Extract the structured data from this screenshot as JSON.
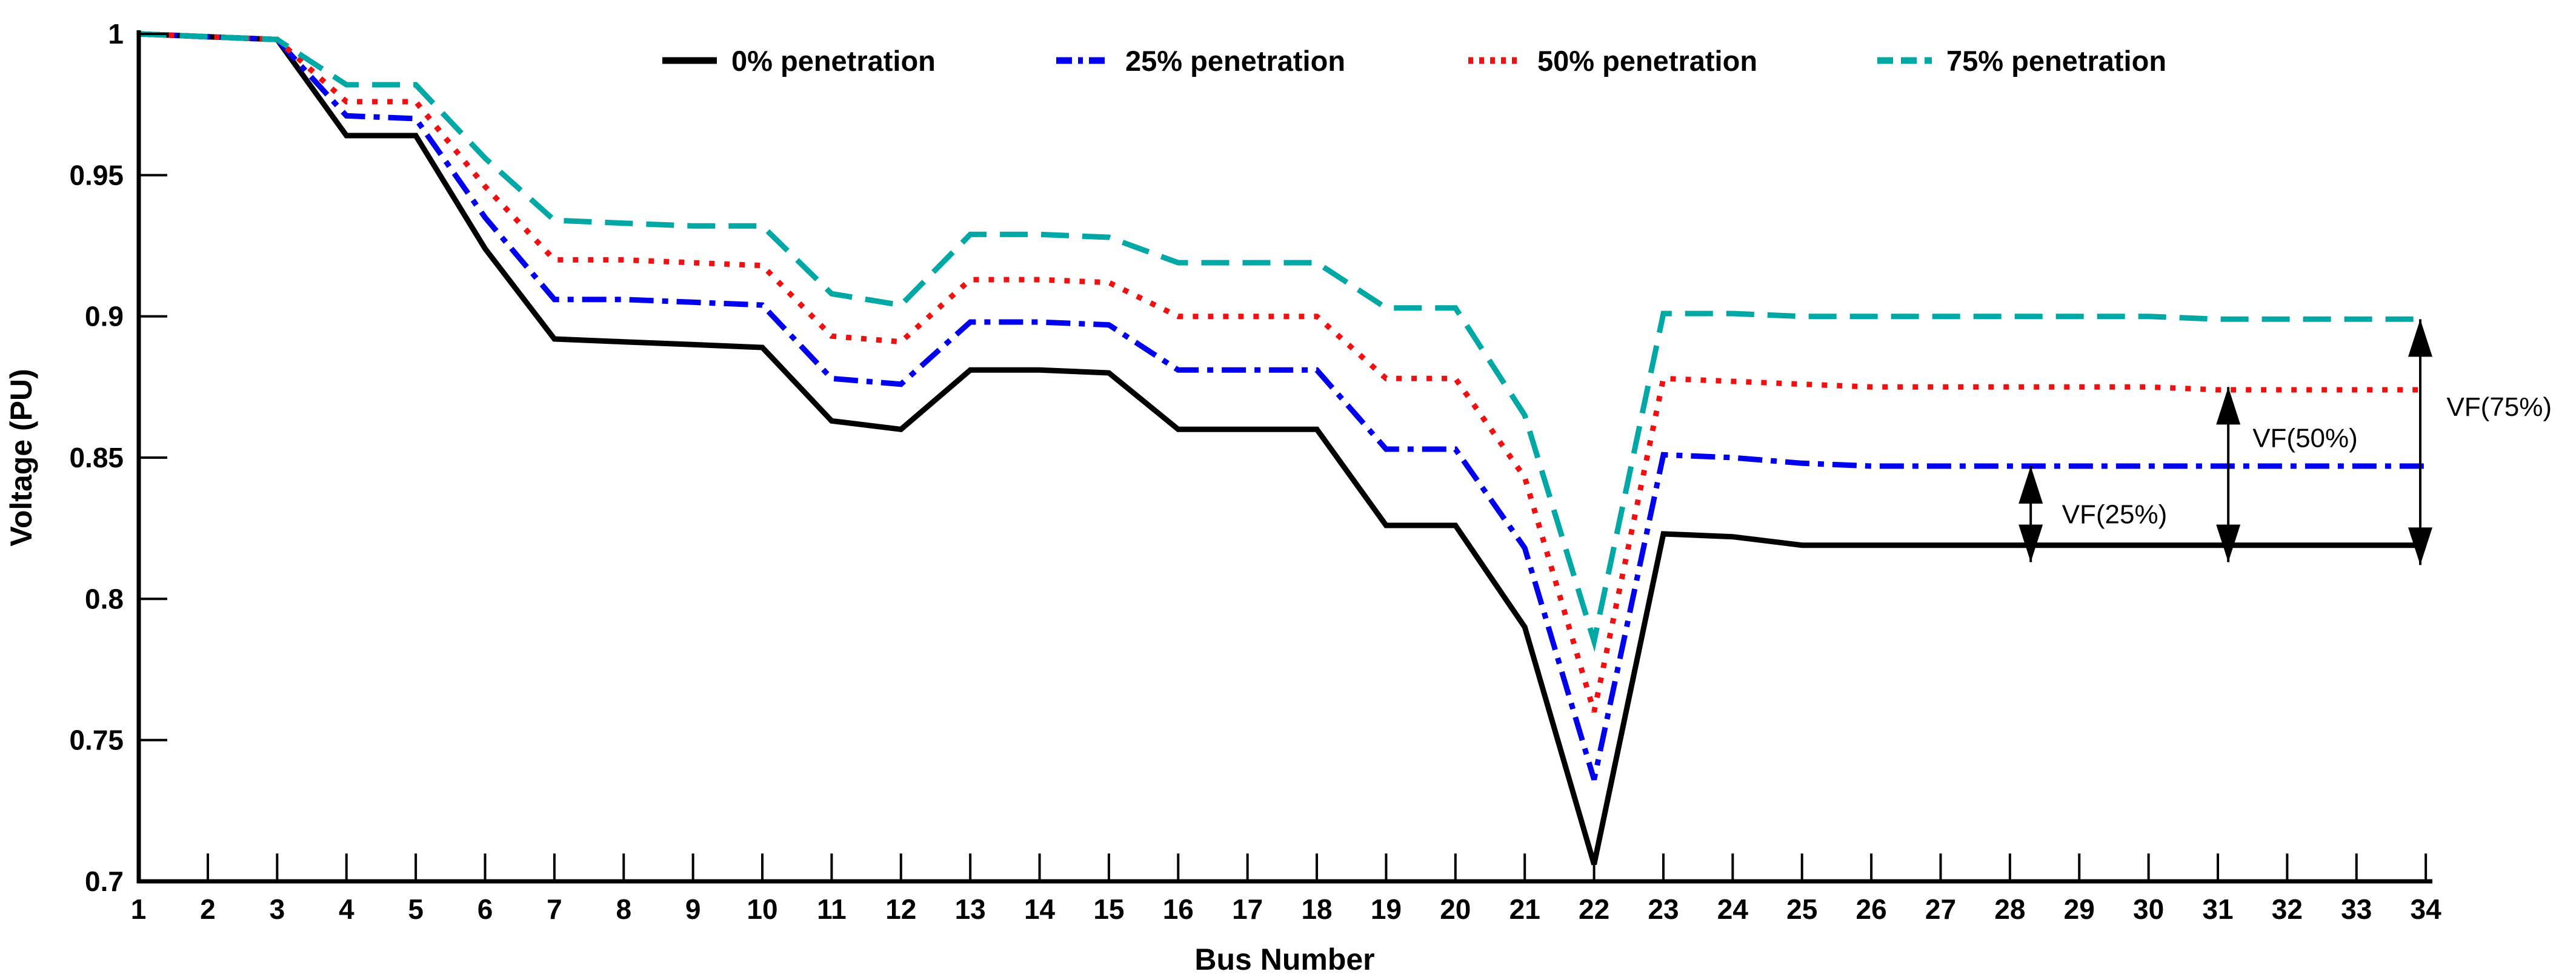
{
  "chart_data": {
    "type": "line",
    "title": "",
    "xlabel": "Bus Number",
    "ylabel": "Voltage (PU)",
    "x": [
      1,
      2,
      3,
      4,
      5,
      6,
      7,
      8,
      9,
      10,
      11,
      12,
      13,
      14,
      15,
      16,
      17,
      18,
      19,
      20,
      21,
      22,
      23,
      24,
      25,
      26,
      27,
      28,
      29,
      30,
      31,
      32,
      33,
      34
    ],
    "xlim": [
      1,
      34
    ],
    "ylim": [
      0.7,
      1.0
    ],
    "yticks": [
      1,
      0.95,
      0.9,
      0.85,
      0.8,
      0.75,
      0.7
    ],
    "ytick_labels": [
      "1",
      "0.95",
      "0.9",
      "0.85",
      "0.8",
      "0.75",
      "0.7"
    ],
    "xtick_labels": [
      "1",
      "2",
      "3",
      "4",
      "5",
      "6",
      "7",
      "8",
      "9",
      "10",
      "11",
      "12",
      "13",
      "14",
      "15",
      "16",
      "17",
      "18",
      "19",
      "20",
      "21",
      "22",
      "23",
      "24",
      "25",
      "26",
      "27",
      "28",
      "29",
      "30",
      "31",
      "32",
      "33",
      "34"
    ],
    "grid": false,
    "legend_position": "top-inside-horizontal",
    "series": [
      {
        "name": "0% penetration",
        "color": "#000000",
        "style": "solid",
        "values": [
          1.0,
          0.999,
          0.998,
          0.964,
          0.964,
          0.924,
          0.892,
          0.891,
          0.89,
          0.889,
          0.863,
          0.86,
          0.881,
          0.881,
          0.88,
          0.86,
          0.86,
          0.86,
          0.826,
          0.826,
          0.79,
          0.706,
          0.823,
          0.822,
          0.819,
          0.819,
          0.819,
          0.819,
          0.819,
          0.819,
          0.819,
          0.819,
          0.819,
          0.819
        ]
      },
      {
        "name": "25% penetration",
        "color": "#0000EE",
        "style": "dash-dot",
        "values": [
          1.0,
          0.999,
          0.998,
          0.971,
          0.97,
          0.935,
          0.906,
          0.906,
          0.905,
          0.904,
          0.878,
          0.876,
          0.898,
          0.898,
          0.897,
          0.881,
          0.881,
          0.881,
          0.853,
          0.853,
          0.818,
          0.736,
          0.851,
          0.85,
          0.848,
          0.847,
          0.847,
          0.847,
          0.847,
          0.847,
          0.847,
          0.847,
          0.847,
          0.847
        ]
      },
      {
        "name": "50% penetration",
        "color": "#F01010",
        "style": "dotted",
        "values": [
          1.0,
          0.999,
          0.998,
          0.976,
          0.976,
          0.946,
          0.92,
          0.92,
          0.919,
          0.918,
          0.893,
          0.891,
          0.913,
          0.913,
          0.912,
          0.9,
          0.9,
          0.9,
          0.878,
          0.878,
          0.843,
          0.76,
          0.878,
          0.877,
          0.876,
          0.875,
          0.875,
          0.875,
          0.875,
          0.875,
          0.874,
          0.874,
          0.874,
          0.874
        ]
      },
      {
        "name": "75% penetration",
        "color": "#00A8A5",
        "style": "dashed",
        "values": [
          1.0,
          0.999,
          0.998,
          0.982,
          0.982,
          0.956,
          0.934,
          0.933,
          0.932,
          0.932,
          0.908,
          0.904,
          0.929,
          0.929,
          0.928,
          0.919,
          0.919,
          0.919,
          0.903,
          0.903,
          0.865,
          0.785,
          0.901,
          0.901,
          0.9,
          0.9,
          0.9,
          0.9,
          0.9,
          0.9,
          0.899,
          0.899,
          0.899,
          0.899
        ]
      }
    ],
    "annotations": [
      {
        "label": "VF(25%)",
        "arrow_bus": 28.3,
        "from_value": 0.813,
        "to_value": 0.847,
        "label_bus": 28.75,
        "label_value": 0.83
      },
      {
        "label": "VF(50%)",
        "arrow_bus": 31.15,
        "from_value": 0.813,
        "to_value": 0.875,
        "label_bus": 31.5,
        "label_value": 0.857
      },
      {
        "label": "VF(75%)",
        "arrow_bus": 33.92,
        "from_value": 0.812,
        "to_value": 0.899,
        "label_bus": 34.3,
        "label_value": 0.868
      }
    ]
  }
}
